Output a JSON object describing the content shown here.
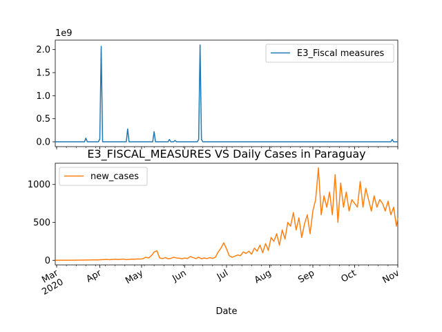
{
  "chart_data": [
    {
      "type": "line",
      "title": "",
      "xlabel": "",
      "ylabel": "",
      "y_exponent_label": "1e9",
      "xlim": [
        "2020-02-29",
        "2020-11-01"
      ],
      "ylim": [
        -0.105,
        2.205
      ],
      "yticks": [
        0.0,
        0.5,
        1.0,
        1.5,
        2.0
      ],
      "ytick_labels": [
        "0.0",
        "0.5",
        "1.0",
        "1.5",
        "2.0"
      ],
      "grid": false,
      "legend_position": "top-right",
      "color": "#1f77b4",
      "series": [
        {
          "name": "E3_Fiscal measures",
          "x": [
            "2020-02-29",
            "2020-03-21",
            "2020-03-22",
            "2020-03-23",
            "2020-03-31",
            "2020-04-01",
            "2020-04-02",
            "2020-04-03",
            "2020-04-04",
            "2020-04-20",
            "2020-04-21",
            "2020-04-22",
            "2020-05-09",
            "2020-05-10",
            "2020-05-11",
            "2020-05-20",
            "2020-05-21",
            "2020-05-22",
            "2020-05-24",
            "2020-05-25",
            "2020-05-26",
            "2020-06-10",
            "2020-06-11",
            "2020-06-12",
            "2020-06-13",
            "2020-06-14",
            "2020-10-27",
            "2020-10-28",
            "2020-10-29",
            "2020-11-01"
          ],
          "values": [
            0,
            0,
            0.08,
            0,
            0,
            0.06,
            2.07,
            0,
            0,
            0,
            0.28,
            0,
            0,
            0.22,
            0,
            0,
            0.05,
            0,
            0,
            0.03,
            0,
            0,
            0.05,
            2.1,
            0.05,
            0,
            0,
            0.05,
            0,
            0
          ]
        }
      ]
    },
    {
      "type": "line",
      "title": "E3_FISCAL_MEASURES VS Daily Cases in Paraguay",
      "xlabel": "Date",
      "ylabel": "",
      "xlim": [
        "2020-02-29",
        "2020-11-01"
      ],
      "ylim": [
        -61,
        1280
      ],
      "yticks": [
        0,
        500,
        1000
      ],
      "ytick_labels": [
        "0",
        "500",
        "1000"
      ],
      "xticks": [
        "2020-03-01",
        "2020-04-01",
        "2020-05-01",
        "2020-06-01",
        "2020-07-01",
        "2020-08-01",
        "2020-09-01",
        "2020-10-01",
        "2020-11-01"
      ],
      "xtick_labels": [
        "Mar\n2020",
        "Apr",
        "May",
        "Jun",
        "Jul",
        "Aug",
        "Sep",
        "Oct",
        "Nov"
      ],
      "grid": false,
      "legend_position": "top-left",
      "color": "#ff7f0e",
      "series": [
        {
          "name": "new_cases",
          "x": [
            "2020-02-29",
            "2020-03-05",
            "2020-03-10",
            "2020-03-15",
            "2020-03-20",
            "2020-03-25",
            "2020-03-28",
            "2020-03-30",
            "2020-04-02",
            "2020-04-04",
            "2020-04-06",
            "2020-04-08",
            "2020-04-10",
            "2020-04-12",
            "2020-04-14",
            "2020-04-16",
            "2020-04-18",
            "2020-04-20",
            "2020-04-22",
            "2020-04-24",
            "2020-04-26",
            "2020-04-28",
            "2020-04-30",
            "2020-05-02",
            "2020-05-04",
            "2020-05-06",
            "2020-05-08",
            "2020-05-10",
            "2020-05-12",
            "2020-05-14",
            "2020-05-16",
            "2020-05-18",
            "2020-05-20",
            "2020-05-22",
            "2020-05-24",
            "2020-05-26",
            "2020-05-28",
            "2020-05-30",
            "2020-06-01",
            "2020-06-03",
            "2020-06-05",
            "2020-06-07",
            "2020-06-09",
            "2020-06-11",
            "2020-06-13",
            "2020-06-15",
            "2020-06-17",
            "2020-06-19",
            "2020-06-21",
            "2020-06-23",
            "2020-06-25",
            "2020-06-27",
            "2020-06-29",
            "2020-07-01",
            "2020-07-03",
            "2020-07-05",
            "2020-07-07",
            "2020-07-09",
            "2020-07-11",
            "2020-07-13",
            "2020-07-15",
            "2020-07-17",
            "2020-07-19",
            "2020-07-21",
            "2020-07-23",
            "2020-07-25",
            "2020-07-27",
            "2020-07-29",
            "2020-07-31",
            "2020-08-02",
            "2020-08-04",
            "2020-08-06",
            "2020-08-08",
            "2020-08-10",
            "2020-08-12",
            "2020-08-14",
            "2020-08-16",
            "2020-08-18",
            "2020-08-20",
            "2020-08-22",
            "2020-08-24",
            "2020-08-26",
            "2020-08-28",
            "2020-08-30",
            "2020-09-01",
            "2020-09-03",
            "2020-09-05",
            "2020-09-07",
            "2020-09-09",
            "2020-09-11",
            "2020-09-13",
            "2020-09-15",
            "2020-09-17",
            "2020-09-19",
            "2020-09-21",
            "2020-09-23",
            "2020-09-25",
            "2020-09-27",
            "2020-09-29",
            "2020-10-01",
            "2020-10-03",
            "2020-10-05",
            "2020-10-07",
            "2020-10-09",
            "2020-10-11",
            "2020-10-13",
            "2020-10-15",
            "2020-10-17",
            "2020-10-19",
            "2020-10-21",
            "2020-10-23",
            "2020-10-25",
            "2020-10-27",
            "2020-10-29",
            "2020-10-31",
            "2020-11-01"
          ],
          "values": [
            0,
            0,
            1,
            2,
            3,
            4,
            6,
            5,
            8,
            10,
            12,
            8,
            11,
            14,
            10,
            13,
            16,
            9,
            12,
            15,
            14,
            18,
            16,
            20,
            40,
            30,
            60,
            110,
            125,
            30,
            22,
            35,
            20,
            25,
            40,
            30,
            28,
            20,
            30,
            22,
            50,
            35,
            22,
            40,
            20,
            30,
            22,
            35,
            25,
            40,
            110,
            160,
            230,
            150,
            60,
            40,
            55,
            70,
            60,
            110,
            90,
            120,
            80,
            160,
            120,
            200,
            100,
            220,
            130,
            300,
            250,
            350,
            200,
            400,
            280,
            500,
            450,
            630,
            400,
            560,
            300,
            480,
            600,
            350,
            650,
            800,
            1220,
            600,
            850,
            700,
            900,
            600,
            1130,
            500,
            1020,
            700,
            900,
            650,
            800,
            750,
            700,
            1040,
            700,
            950,
            800,
            650,
            850,
            700,
            800,
            750,
            650,
            780,
            600,
            700,
            450,
            560
          ]
        }
      ]
    }
  ]
}
